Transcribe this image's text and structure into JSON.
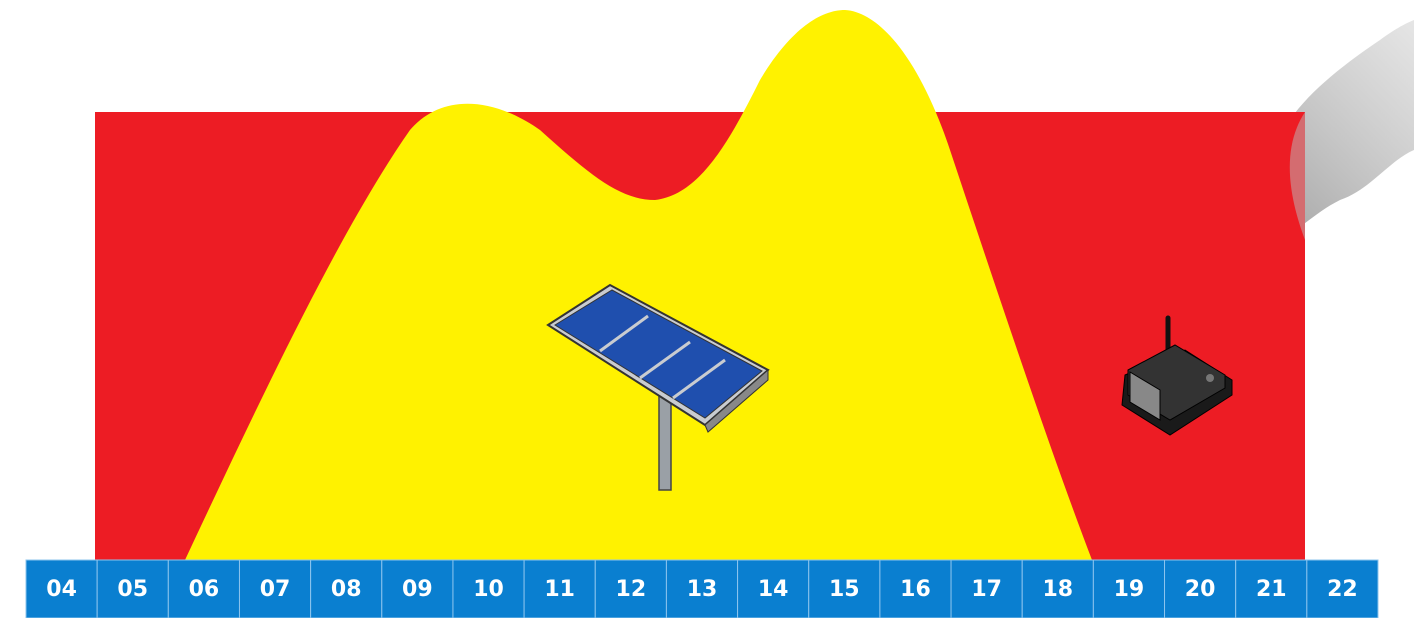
{
  "timeline": {
    "hours": [
      "04",
      "05",
      "06",
      "07",
      "08",
      "09",
      "10",
      "11",
      "12",
      "13",
      "14",
      "15",
      "16",
      "17",
      "18",
      "19",
      "20",
      "21",
      "22"
    ]
  }
}
